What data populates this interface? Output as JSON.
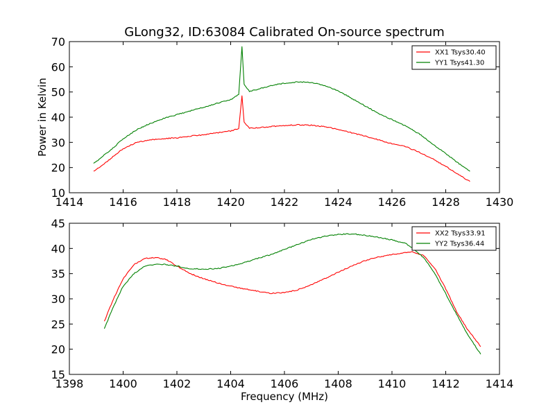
{
  "figure_title": "GLong32, ID:63084 Calibrated On-source spectrum",
  "chart_data": [
    {
      "type": "line",
      "xlim": [
        1414,
        1430
      ],
      "ylim": [
        10,
        70
      ],
      "xticks": [
        "1414",
        "1416",
        "1418",
        "1420",
        "1422",
        "1424",
        "1426",
        "1428",
        "1430"
      ],
      "yticks": [
        "10",
        "20",
        "30",
        "40",
        "50",
        "60",
        "70"
      ],
      "xlabel": "",
      "ylabel": "Power in Kelvin",
      "grid": false,
      "legend_position": "top-right",
      "series": [
        {
          "name": "XX1 Tsys30.40",
          "color": "#ff0000",
          "x": [
            1414.9,
            1415.3,
            1415.7,
            1416.0,
            1416.5,
            1417.0,
            1417.5,
            1418.0,
            1418.5,
            1419.0,
            1419.5,
            1420.0,
            1420.3,
            1420.42,
            1420.5,
            1420.7,
            1421.0,
            1421.5,
            1422.0,
            1422.5,
            1423.0,
            1423.5,
            1424.0,
            1424.5,
            1425.0,
            1425.5,
            1426.0,
            1426.5,
            1427.0,
            1427.5,
            1428.0,
            1428.5,
            1428.9
          ],
          "y": [
            18.5,
            21.5,
            25.0,
            27.5,
            30.0,
            31.0,
            31.5,
            31.8,
            32.5,
            33.0,
            33.8,
            34.5,
            35.5,
            48.5,
            38.0,
            35.7,
            35.8,
            36.3,
            36.7,
            37.0,
            36.8,
            36.2,
            35.2,
            33.8,
            32.5,
            31.0,
            29.5,
            28.3,
            26.2,
            23.5,
            20.5,
            17.0,
            14.5
          ]
        },
        {
          "name": "YY1 Tsys41.30",
          "color": "#008000",
          "x": [
            1414.9,
            1415.3,
            1415.7,
            1416.0,
            1416.5,
            1417.0,
            1417.5,
            1418.0,
            1418.5,
            1419.0,
            1419.5,
            1420.0,
            1420.3,
            1420.42,
            1420.5,
            1420.7,
            1421.0,
            1421.5,
            1422.0,
            1422.5,
            1423.0,
            1423.5,
            1424.0,
            1424.5,
            1425.0,
            1425.5,
            1426.0,
            1426.5,
            1427.0,
            1427.5,
            1428.0,
            1428.5,
            1428.9
          ],
          "y": [
            21.5,
            25.0,
            28.5,
            31.5,
            35.0,
            37.5,
            39.5,
            41.0,
            42.5,
            44.0,
            45.5,
            47.0,
            49.0,
            68.0,
            53.0,
            50.3,
            51.0,
            52.5,
            53.5,
            54.0,
            53.8,
            52.5,
            50.5,
            47.5,
            44.5,
            41.5,
            39.0,
            36.5,
            33.5,
            29.5,
            25.5,
            21.5,
            18.5
          ]
        }
      ]
    },
    {
      "type": "line",
      "xlim": [
        1398,
        1414
      ],
      "ylim": [
        15,
        45
      ],
      "xticks": [
        "1398",
        "1400",
        "1402",
        "1404",
        "1406",
        "1408",
        "1410",
        "1412",
        "1414"
      ],
      "yticks": [
        "15",
        "20",
        "25",
        "30",
        "35",
        "40",
        "45"
      ],
      "xlabel": "Frequency (MHz)",
      "ylabel": "",
      "grid": false,
      "legend_position": "top-right",
      "series": [
        {
          "name": "XX2 Tsys33.91",
          "color": "#ff0000",
          "x": [
            1399.3,
            1399.6,
            1400.0,
            1400.4,
            1400.8,
            1401.2,
            1401.6,
            1402.0,
            1402.5,
            1403.0,
            1403.5,
            1404.0,
            1404.5,
            1405.0,
            1405.5,
            1406.0,
            1406.5,
            1407.0,
            1407.5,
            1408.0,
            1408.5,
            1409.0,
            1409.5,
            1410.0,
            1410.5,
            1410.8,
            1411.2,
            1411.6,
            1412.0,
            1412.4,
            1412.8,
            1413.3
          ],
          "y": [
            25.5,
            29.5,
            34.0,
            36.8,
            38.0,
            38.2,
            37.8,
            36.5,
            35.0,
            34.0,
            33.2,
            32.5,
            32.0,
            31.5,
            31.1,
            31.2,
            31.8,
            32.8,
            34.0,
            35.3,
            36.5,
            37.6,
            38.3,
            38.8,
            39.2,
            39.3,
            38.5,
            36.0,
            32.0,
            27.5,
            24.0,
            20.5
          ]
        },
        {
          "name": "YY2 Tsys36.44",
          "color": "#008000",
          "x": [
            1399.3,
            1399.6,
            1400.0,
            1400.4,
            1400.8,
            1401.2,
            1401.6,
            1402.0,
            1402.5,
            1403.0,
            1403.5,
            1404.0,
            1404.5,
            1405.0,
            1405.5,
            1406.0,
            1406.5,
            1407.0,
            1407.5,
            1408.0,
            1408.5,
            1409.0,
            1409.5,
            1410.0,
            1410.5,
            1410.8,
            1411.2,
            1411.6,
            1412.0,
            1412.4,
            1412.8,
            1413.3
          ],
          "y": [
            24.0,
            28.0,
            32.5,
            35.0,
            36.5,
            36.9,
            36.8,
            36.5,
            36.0,
            35.9,
            36.0,
            36.5,
            37.2,
            38.0,
            38.8,
            39.8,
            40.8,
            41.8,
            42.4,
            42.8,
            42.9,
            42.6,
            42.2,
            41.7,
            41.0,
            40.0,
            38.0,
            35.0,
            31.0,
            27.0,
            23.0,
            19.0
          ]
        }
      ]
    }
  ]
}
